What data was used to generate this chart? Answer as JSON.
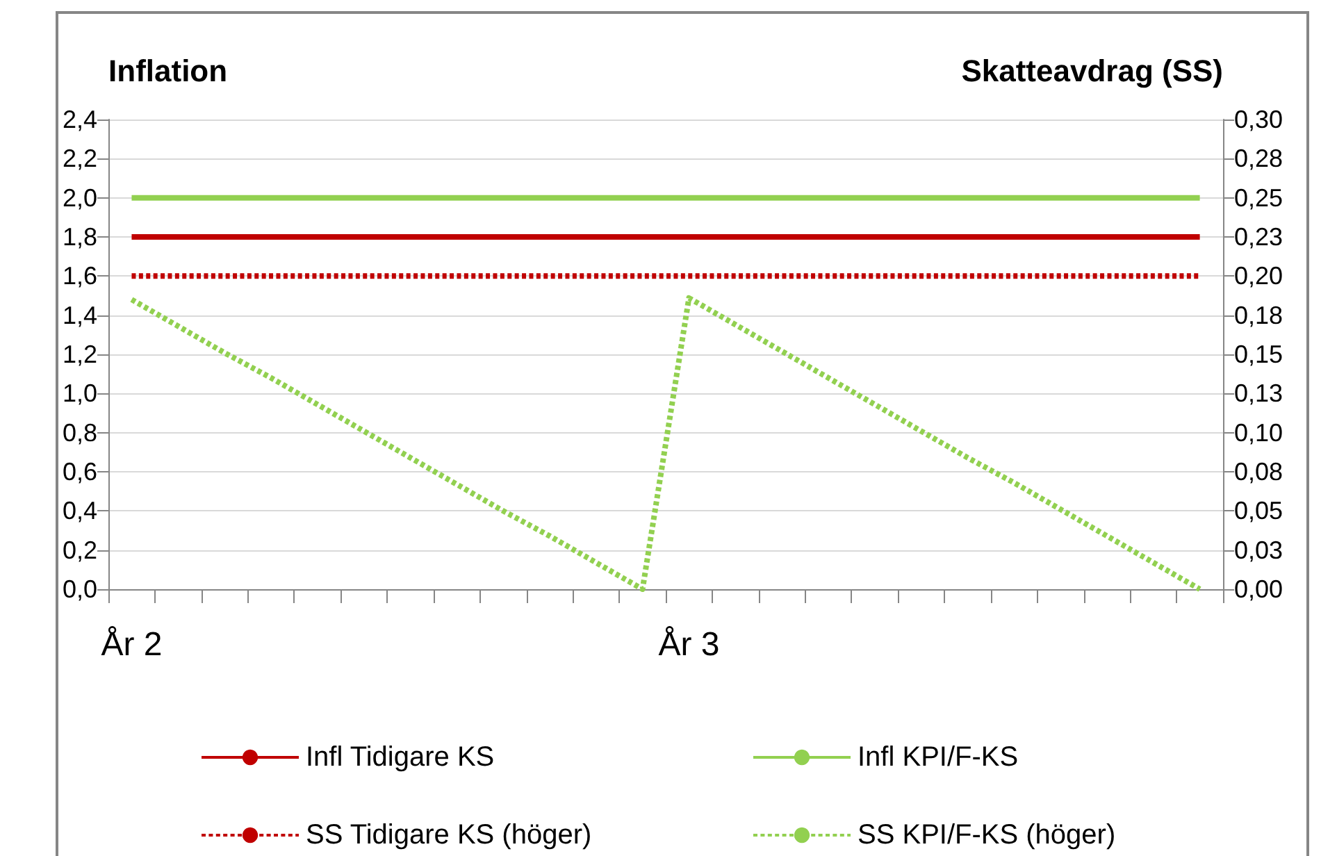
{
  "chart_data": {
    "type": "line",
    "ylabel": "Inflation",
    "y2label": "Skatteavdrag (SS)",
    "categories": [
      "År 2",
      null,
      null,
      null,
      null,
      null,
      null,
      null,
      null,
      null,
      null,
      null,
      "År 3",
      null,
      null,
      null,
      null,
      null,
      null,
      null,
      null,
      null,
      null,
      null
    ],
    "series": [
      {
        "name": "Infl Tidigare KS",
        "color": "#c00000",
        "values": [
          1.8,
          1.8,
          1.8,
          1.8,
          1.8,
          1.8,
          1.8,
          1.8,
          1.8,
          1.8,
          1.8,
          1.8,
          1.8,
          1.8,
          1.8,
          1.8,
          1.8,
          1.8,
          1.8,
          1.8,
          1.8,
          1.8,
          1.8,
          1.8
        ]
      },
      {
        "name": "Infl KPI/F-KS",
        "color": "#92d050",
        "values": [
          2.0,
          2.0,
          2.0,
          2.0,
          2.0,
          2.0,
          2.0,
          2.0,
          2.0,
          2.0,
          2.0,
          2.0,
          2.0,
          2.0,
          2.0,
          2.0,
          2.0,
          2.0,
          2.0,
          2.0,
          2.0,
          2.0,
          2.0,
          2.0
        ]
      },
      {
        "name": "SS Tidigare KS (höger)",
        "color": "#c00000",
        "axis": "y2",
        "line_style": "dashed",
        "values": [
          0.2,
          0.2,
          0.2,
          0.2,
          0.2,
          0.2,
          0.2,
          0.2,
          0.2,
          0.2,
          0.2,
          0.2,
          0.2,
          0.2,
          0.2,
          0.2,
          0.2,
          0.2,
          0.2,
          0.2,
          0.2,
          0.2,
          0.2,
          0.2
        ]
      },
      {
        "name": "SS KPI/F-KS (höger)",
        "color": "#92d050",
        "axis": "y2",
        "line_style": "dashed",
        "values": [
          0.185,
          0.168,
          0.151,
          0.135,
          0.118,
          0.101,
          0.084,
          0.067,
          0.05,
          0.034,
          0.017,
          0,
          0.186,
          0.169,
          0.152,
          0.135,
          0.118,
          0.101,
          0.084,
          0.068,
          0.051,
          0.034,
          0.017,
          0
        ]
      }
    ],
    "ylim": [
      0,
      2.4
    ],
    "yticks": [
      {
        "value": 0,
        "label": "0,0"
      },
      {
        "value": 0.2,
        "label": "0,2"
      },
      {
        "value": 0.4,
        "label": "0,4"
      },
      {
        "value": 0.6,
        "label": "0,6"
      },
      {
        "value": 0.8,
        "label": "0,8"
      },
      {
        "value": 1.0,
        "label": "1,0"
      },
      {
        "value": 1.2,
        "label": "1,2"
      },
      {
        "value": 1.4,
        "label": "1,4"
      },
      {
        "value": 1.6,
        "label": "1,6"
      },
      {
        "value": 1.8,
        "label": "1,8"
      },
      {
        "value": 2.0,
        "label": "2,0"
      },
      {
        "value": 2.2,
        "label": "2,2"
      },
      {
        "value": 2.4,
        "label": "2,4"
      }
    ],
    "y2lim": [
      0,
      0.3
    ],
    "y2ticks": [
      {
        "value": 0,
        "label": "0,00"
      },
      {
        "value": 0.025,
        "label": "0,03"
      },
      {
        "value": 0.05,
        "label": "0,05"
      },
      {
        "value": 0.075,
        "label": "0,08"
      },
      {
        "value": 0.1,
        "label": "0,10"
      },
      {
        "value": 0.125,
        "label": "0,13"
      },
      {
        "value": 0.15,
        "label": "0,15"
      },
      {
        "value": 0.175,
        "label": "0,18"
      },
      {
        "value": 0.2,
        "label": "0,20"
      },
      {
        "value": 0.225,
        "label": "0,23"
      },
      {
        "value": 0.25,
        "label": "0,25"
      },
      {
        "value": 0.275,
        "label": "0,28"
      },
      {
        "value": 0.3,
        "label": "0,30"
      }
    ],
    "grid": "y",
    "legend": "bottom",
    "marker": "none",
    "line_style": "solid"
  }
}
